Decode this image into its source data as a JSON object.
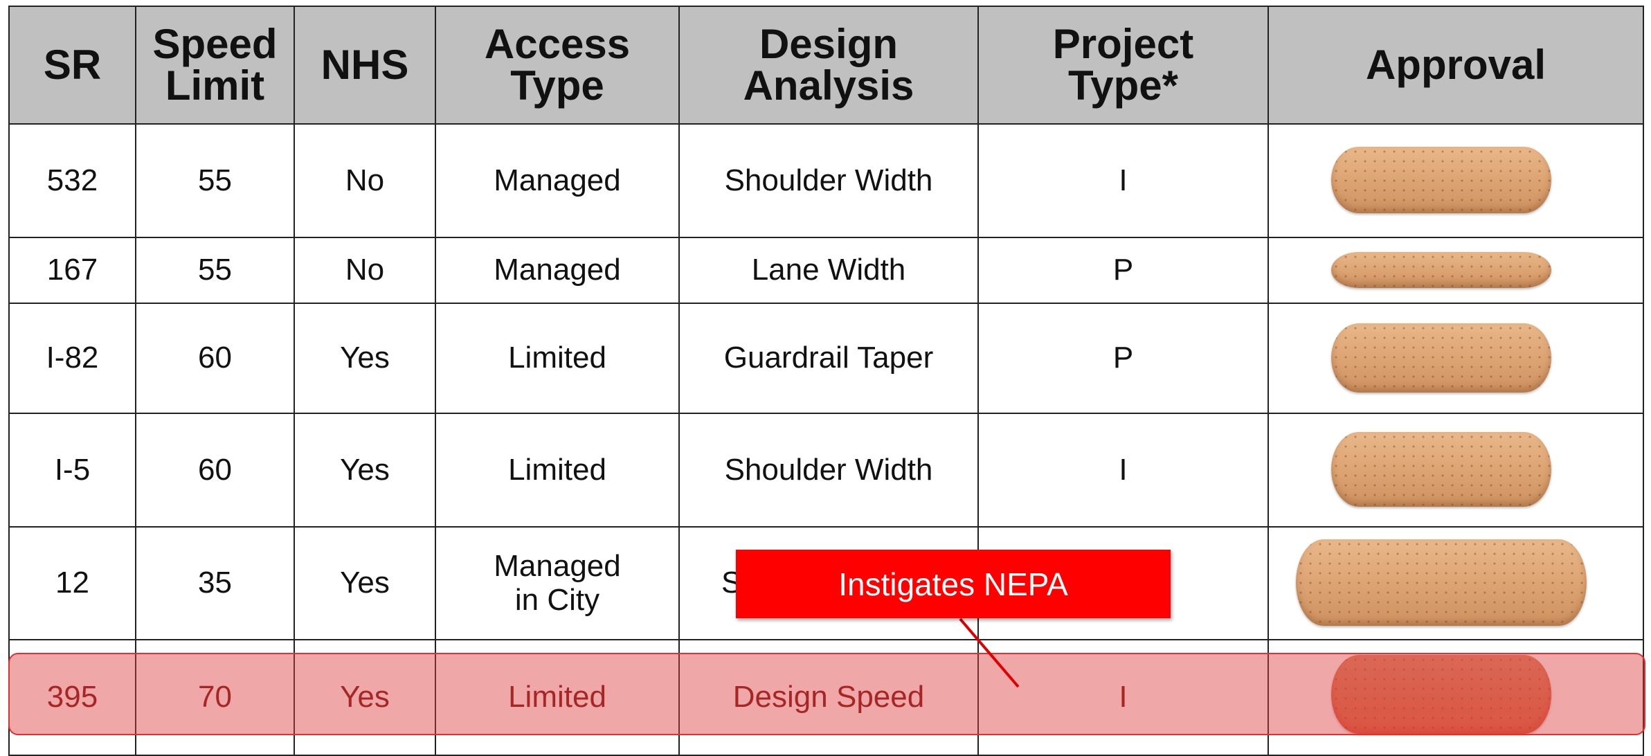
{
  "table": {
    "header": [
      "SR",
      "Speed\nLimit",
      "NHS",
      "Access\nType",
      "Design\nAnalysis",
      "Project\nType*",
      "Approval"
    ],
    "rows": [
      [
        "532",
        "55",
        "No",
        "Managed",
        "Shoulder Width",
        "I"
      ],
      [
        "167",
        "55",
        "No",
        "Managed",
        "Lane Width",
        "P"
      ],
      [
        "I-82",
        "60",
        "Yes",
        "Limited",
        "Guardrail Taper",
        "P"
      ],
      [
        "I-5",
        "60",
        "Yes",
        "Limited",
        "Shoulder Width",
        "I"
      ],
      [
        "12",
        "35",
        "Yes",
        "Managed\nin City",
        "S",
        ""
      ],
      [
        "395",
        "70",
        "Yes",
        "Limited",
        "Design Speed",
        "I"
      ]
    ]
  },
  "callout": {
    "text": "Instigates NEPA"
  }
}
